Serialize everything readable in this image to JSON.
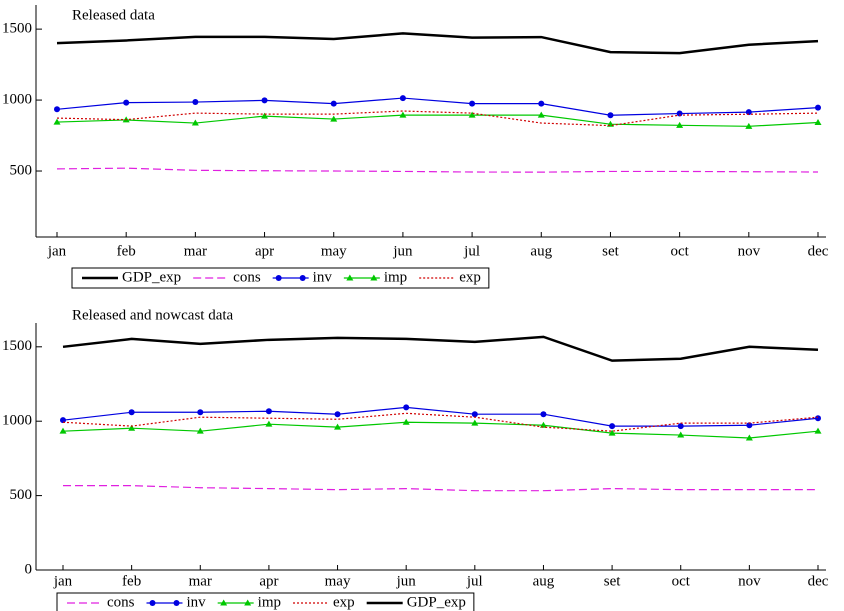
{
  "chart_data": [
    {
      "type": "line",
      "title": "Released data",
      "categories": [
        "jan",
        "feb",
        "mar",
        "apr",
        "may",
        "jun",
        "jul",
        "aug",
        "set",
        "oct",
        "nov",
        "dec"
      ],
      "ylim": [
        35,
        1670
      ],
      "yticks": [
        500,
        1000,
        1500
      ],
      "legend": "below",
      "series": [
        {
          "name": "GDP_exp",
          "color": "#000000",
          "style": "solid",
          "marker": "none",
          "values": [
            1401,
            1420,
            1445,
            1445,
            1430,
            1470,
            1440,
            1444,
            1338,
            1331,
            1390,
            1415
          ]
        },
        {
          "name": "cons",
          "color": "#e020e0",
          "style": "dashed",
          "marker": "none",
          "values": [
            515,
            520,
            505,
            502,
            500,
            497,
            493,
            492,
            497,
            497,
            495,
            493
          ]
        },
        {
          "name": "inv",
          "color": "#0000e0",
          "style": "solid",
          "marker": "circle",
          "values": [
            935,
            982,
            986,
            998,
            975,
            1014,
            975,
            975,
            893,
            905,
            915,
            947
          ]
        },
        {
          "name": "imp",
          "color": "#00c800",
          "style": "solid",
          "marker": "triangle",
          "values": [
            845,
            860,
            838,
            887,
            866,
            894,
            894,
            894,
            830,
            822,
            815,
            842
          ]
        },
        {
          "name": "exp",
          "color": "#d00000",
          "style": "dotted",
          "marker": "none",
          "values": [
            873,
            862,
            908,
            901,
            901,
            923,
            908,
            838,
            820,
            894,
            900,
            908
          ]
        }
      ]
    },
    {
      "type": "line",
      "title": "Released and nowcast data",
      "categories": [
        "jan",
        "feb",
        "mar",
        "apr",
        "may",
        "jun",
        "jul",
        "aug",
        "set",
        "oct",
        "nov",
        "dec"
      ],
      "ylim": [
        0,
        1660
      ],
      "yticks": [
        0,
        500,
        1000,
        1500
      ],
      "legend": "below",
      "series": [
        {
          "name": "cons",
          "color": "#e020e0",
          "style": "dashed",
          "marker": "none",
          "values": [
            567,
            567,
            553,
            547,
            540,
            547,
            533,
            533,
            547,
            540,
            540,
            540
          ]
        },
        {
          "name": "inv",
          "color": "#0000e0",
          "style": "solid",
          "marker": "circle",
          "values": [
            1007,
            1060,
            1060,
            1067,
            1047,
            1093,
            1047,
            1047,
            967,
            967,
            973,
            1020
          ]
        },
        {
          "name": "imp",
          "color": "#00c800",
          "style": "solid",
          "marker": "triangle",
          "values": [
            933,
            953,
            933,
            980,
            960,
            993,
            987,
            973,
            920,
            907,
            887,
            933
          ]
        },
        {
          "name": "exp",
          "color": "#d00000",
          "style": "dotted",
          "marker": "none",
          "values": [
            993,
            967,
            1027,
            1020,
            1013,
            1053,
            1027,
            960,
            933,
            987,
            987,
            1027
          ]
        },
        {
          "name": "GDP_exp",
          "color": "#000000",
          "style": "solid",
          "marker": "none",
          "values": [
            1500,
            1553,
            1520,
            1547,
            1560,
            1553,
            1533,
            1567,
            1407,
            1420,
            1500,
            1480
          ]
        }
      ]
    }
  ]
}
